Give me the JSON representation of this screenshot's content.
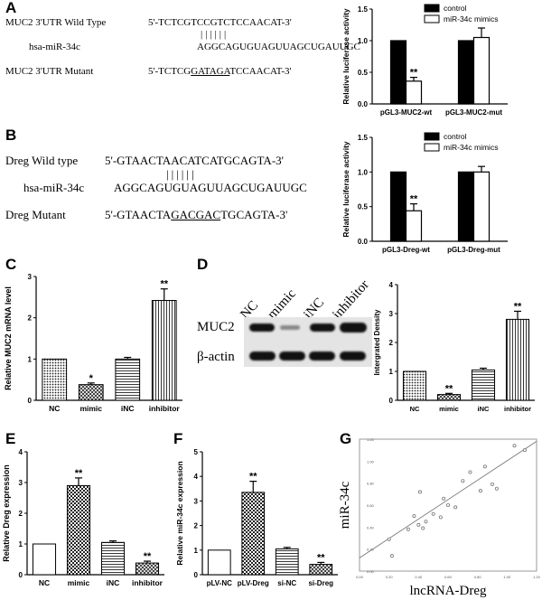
{
  "panels": {
    "A": {
      "letter": "A",
      "seq": {
        "wt_label": "MUC2 3'UTR Wild Type",
        "wt_seq": "5'-TCTCGTCCGTCTCCAACAT-3'",
        "mir_label": "hsa-miR-34c",
        "mir_seq": "AGGCAGUGUAGUUAGCUGAUUGC",
        "mut_label": "MUC2 3'UTR Mutant",
        "mut_pre": "5'-TCTCG",
        "mut_core": "GATAGA",
        "mut_post": "TCCAACAT-3'",
        "pairing": "||||||"
      },
      "chart_data": {
        "type": "bar",
        "ylabel": "Relative luciferase activity",
        "ylim": [
          0,
          1.5
        ],
        "yticks": [
          "0.0",
          "0.5",
          "1.0",
          "1.5"
        ],
        "categories": [
          "pGL3-MUC2-wt",
          "pGL3-MUC2-mut"
        ],
        "legend": [
          "control",
          "miR-34c mimics"
        ],
        "series": [
          {
            "name": "control",
            "values": [
              1.0,
              1.0
            ],
            "errors": [
              0,
              0
            ]
          },
          {
            "name": "miR-34c mimics",
            "values": [
              0.36,
              1.05
            ],
            "errors": [
              0.06,
              0.15
            ]
          }
        ],
        "annotations": [
          {
            "series": 1,
            "index": 0,
            "text": "**"
          }
        ]
      }
    },
    "B": {
      "letter": "B",
      "seq": {
        "wt_label": "Dreg Wild type",
        "wt_seq": "5'-GTAACTAACATCATGCAGTA-3'",
        "mir_label": "hsa-miR-34c",
        "mir_seq": "AGGCAGUGUAGUUAGCUGAUUGC",
        "mut_label": "Dreg Mutant",
        "mut_pre": "5'-GTAACTA",
        "mut_core": "GACGAC",
        "mut_post": "TGCAGTA-3'",
        "pairing": "||||||"
      },
      "chart_data": {
        "type": "bar",
        "ylabel": "Relative luciferase activity",
        "ylim": [
          0,
          1.5
        ],
        "yticks": [
          "0.0",
          "0.5",
          "1.0",
          "1.5"
        ],
        "categories": [
          "pGL3-Dreg-wt",
          "pGL3-Dreg-mut"
        ],
        "legend": [
          "control",
          "miR-34c mimics"
        ],
        "series": [
          {
            "name": "control",
            "values": [
              1.0,
              1.0
            ],
            "errors": [
              0,
              0
            ]
          },
          {
            "name": "miR-34c mimics",
            "values": [
              0.44,
              1.0
            ],
            "errors": [
              0.1,
              0.08
            ]
          }
        ],
        "annotations": [
          {
            "series": 1,
            "index": 0,
            "text": "**"
          }
        ]
      }
    },
    "C": {
      "letter": "C",
      "chart_data": {
        "type": "bar",
        "ylabel": "Relative MUC2 mRNA level",
        "ylim": [
          0,
          3
        ],
        "yticks": [
          "0",
          "1",
          "2",
          "3"
        ],
        "categories": [
          "NC",
          "mimic",
          "iNC",
          "inhibitor"
        ],
        "values": [
          1.0,
          0.38,
          1.0,
          2.42
        ],
        "errors": [
          0,
          0.04,
          0.04,
          0.28
        ],
        "patterns": [
          "dots",
          "cross",
          "hlines",
          "vlines"
        ],
        "significance": [
          "",
          "*",
          "",
          "**"
        ]
      }
    },
    "D": {
      "letter": "D",
      "blot": {
        "lanes": [
          "NC",
          "mimic",
          "iNC",
          "inhibitor"
        ],
        "rows": [
          "MUC2",
          "β-actin"
        ]
      },
      "chart_data": {
        "type": "bar",
        "ylabel": "Intergrated Density",
        "ylim": [
          0,
          4
        ],
        "yticks": [
          "0",
          "1",
          "2",
          "3",
          "4"
        ],
        "categories": [
          "NC",
          "mimic",
          "iNC",
          "inhibitor"
        ],
        "values": [
          1.0,
          0.2,
          1.05,
          2.8
        ],
        "errors": [
          0,
          0.04,
          0.06,
          0.28
        ],
        "patterns": [
          "dots",
          "cross",
          "hlines",
          "vlines"
        ],
        "significance": [
          "",
          "**",
          "",
          "**"
        ]
      }
    },
    "E": {
      "letter": "E",
      "chart_data": {
        "type": "bar",
        "ylabel": "Relative Dreg expression",
        "ylim": [
          0,
          4
        ],
        "yticks": [
          "0",
          "1",
          "2",
          "3",
          "4"
        ],
        "categories": [
          "NC",
          "mimic",
          "iNC",
          "inhibitor"
        ],
        "values": [
          1.0,
          2.9,
          1.05,
          0.38
        ],
        "errors": [
          0,
          0.25,
          0.05,
          0.06
        ],
        "patterns": [
          "plain",
          "checker",
          "hlines",
          "cross"
        ],
        "significance": [
          "",
          "**",
          "",
          "**"
        ]
      }
    },
    "F": {
      "letter": "F",
      "chart_data": {
        "type": "bar",
        "ylabel": "Relative miR-34c expression",
        "ylim": [
          0,
          5
        ],
        "yticks": [
          "0",
          "1",
          "2",
          "3",
          "4",
          "5"
        ],
        "categories": [
          "pLV-NC",
          "pLV-Dreg",
          "si-NC",
          "si-Dreg"
        ],
        "values": [
          1.0,
          3.35,
          1.05,
          0.42
        ],
        "errors": [
          0,
          0.45,
          0.06,
          0.08
        ],
        "patterns": [
          "plain",
          "checker",
          "hlines",
          "cross"
        ],
        "significance": [
          "",
          "**",
          "",
          "**"
        ]
      }
    },
    "G": {
      "letter": "G",
      "chart_data": {
        "type": "scatter",
        "xlabel": "lncRNA-Dreg",
        "ylabel": "miR-34c",
        "xlim": [
          0,
          1.2
        ],
        "ylim": [
          0,
          1.2
        ],
        "xticks": [
          "0.00",
          "0.20",
          "0.40",
          "0.60",
          "0.80",
          "1.00",
          "1.20"
        ],
        "yticks": [
          "0.00",
          "0.20",
          "0.40",
          "0.60",
          "0.80",
          "1.00",
          "1.20"
        ],
        "points": [
          [
            0.2,
            0.29
          ],
          [
            0.22,
            0.14
          ],
          [
            0.33,
            0.38
          ],
          [
            0.37,
            0.5
          ],
          [
            0.4,
            0.42
          ],
          [
            0.41,
            0.72
          ],
          [
            0.43,
            0.39
          ],
          [
            0.45,
            0.45
          ],
          [
            0.5,
            0.52
          ],
          [
            0.55,
            0.49
          ],
          [
            0.57,
            0.66
          ],
          [
            0.6,
            0.6
          ],
          [
            0.65,
            0.58
          ],
          [
            0.7,
            0.82
          ],
          [
            0.75,
            0.9
          ],
          [
            0.82,
            0.73
          ],
          [
            0.85,
            0.95
          ],
          [
            0.9,
            0.79
          ],
          [
            0.93,
            0.75
          ],
          [
            1.05,
            1.14
          ],
          [
            1.12,
            1.1
          ]
        ],
        "fit": {
          "x": [
            0,
            1.2
          ],
          "y": [
            0.12,
            1.18
          ]
        }
      }
    }
  }
}
